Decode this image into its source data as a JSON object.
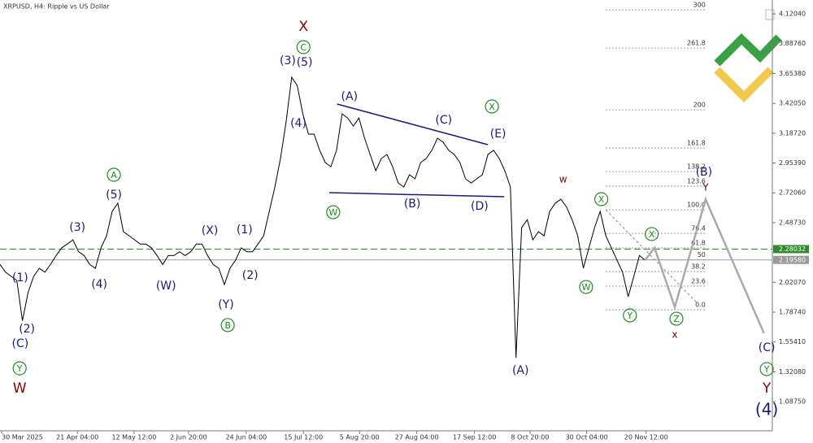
{
  "chart_data": {
    "type": "line",
    "title": "XRPUSD, H4:  Ripple vs US Dollar",
    "color": "#000000",
    "x": [
      0,
      1,
      2,
      3,
      4,
      5,
      6,
      7,
      8,
      9,
      10,
      11,
      12,
      13,
      14,
      15,
      16,
      17,
      18,
      19,
      20,
      21,
      22,
      23,
      24,
      25,
      26,
      27,
      28,
      29,
      30,
      31,
      32,
      33,
      34,
      35,
      36,
      37,
      38,
      39,
      40,
      41,
      42,
      43,
      44,
      45,
      46,
      47,
      48,
      49,
      50,
      51,
      52,
      53,
      54,
      55,
      56,
      57,
      58,
      59,
      60,
      61,
      62,
      63,
      64,
      65,
      66,
      67,
      68,
      69,
      70,
      71,
      72,
      73,
      74,
      75,
      76,
      77,
      78,
      79,
      80,
      81,
      82,
      83,
      84,
      85,
      86,
      87,
      88,
      89,
      90,
      91,
      92,
      93,
      94,
      95,
      96,
      97,
      98,
      99,
      100,
      101,
      102,
      103,
      104,
      105,
      106,
      107,
      108,
      109,
      110,
      111,
      112,
      113,
      114,
      115
    ],
    "values": [
      2.162,
      2.099,
      2.067,
      2.035,
      1.72,
      1.94,
      2.067,
      2.13,
      2.1,
      2.16,
      2.23,
      2.29,
      2.32,
      2.353,
      2.26,
      2.23,
      2.16,
      2.13,
      2.29,
      2.385,
      2.575,
      2.64,
      2.416,
      2.385,
      2.353,
      2.32,
      2.32,
      2.29,
      2.23,
      2.16,
      2.23,
      2.23,
      2.26,
      2.23,
      2.26,
      2.32,
      2.32,
      2.23,
      2.16,
      2.13,
      2.003,
      2.13,
      2.194,
      2.29,
      2.26,
      2.26,
      2.32,
      2.385,
      2.575,
      2.766,
      2.99,
      3.275,
      3.625,
      3.56,
      3.338,
      3.18,
      3.18,
      3.053,
      2.957,
      2.925,
      3.053,
      3.338,
      3.306,
      3.243,
      3.306,
      3.148,
      3.02,
      2.894,
      2.99,
      3.02,
      2.925,
      2.798,
      2.766,
      2.862,
      2.83,
      2.957,
      2.99,
      3.053,
      3.148,
      3.116,
      3.053,
      3.02,
      2.957,
      2.83,
      2.798,
      2.83,
      2.862,
      3.02,
      3.053,
      2.99,
      2.894,
      2.766,
      1.43,
      2.448,
      2.51,
      2.353,
      2.416,
      2.385,
      2.575,
      2.64,
      2.67,
      2.61,
      2.51,
      2.385,
      2.13,
      2.29,
      2.448,
      2.575,
      2.385,
      2.29,
      2.194,
      2.099,
      1.908,
      2.067,
      2.23,
      2.194
    ],
    "projection": {
      "color": "#aaaaaa",
      "x": [
        115,
        116.7,
        120.3,
        125.8,
        136.2
      ],
      "values": [
        2.194,
        2.29,
        1.826,
        2.67,
        1.622
      ]
    },
    "xlim": [
      0,
      137.7
    ],
    "ylim": [
      0.859,
      4.229
    ],
    "xticks": [
      {
        "value": 0.3,
        "label": "30 Mar 2025"
      },
      {
        "value": 13.8,
        "label": "21 Apr 04:00"
      },
      {
        "value": 23.9,
        "label": "12 May 12:00"
      },
      {
        "value": 33.6,
        "label": "2 Jun 20:00"
      },
      {
        "value": 43.9,
        "label": "24 Jun 04:00"
      },
      {
        "value": 54.1,
        "label": "15 Jul 12:00"
      },
      {
        "value": 64.1,
        "label": "5 Aug 20:00"
      },
      {
        "value": 74.3,
        "label": "27 Aug 04:00"
      },
      {
        "value": 84.6,
        "label": "17 Sep 12:00"
      },
      {
        "value": 94.5,
        "label": "8 Oct 20:00"
      },
      {
        "value": 104.6,
        "label": "30 Oct 04:00"
      },
      {
        "value": 115.2,
        "label": "20 Nov 12:00"
      }
    ],
    "yticks": [
      {
        "value": 4.1204,
        "label": "4.12040"
      },
      {
        "value": 3.8876,
        "label": "3.88760"
      },
      {
        "value": 3.6538,
        "label": "3.65380"
      },
      {
        "value": 3.4205,
        "label": "3.42050"
      },
      {
        "value": 3.1872,
        "label": "3.18720"
      },
      {
        "value": 2.9539,
        "label": "2.95390"
      },
      {
        "value": 2.7206,
        "label": "2.72060"
      },
      {
        "value": 2.4873,
        "label": "2.48730"
      },
      {
        "value": 2.0207,
        "label": "2.02070"
      },
      {
        "value": 1.7874,
        "label": "1.78740"
      },
      {
        "value": 1.5541,
        "label": "1.55410"
      },
      {
        "value": 1.3208,
        "label": "1.32080"
      },
      {
        "value": 1.0875,
        "label": "1.08750"
      }
    ],
    "price_lines": [
      {
        "value": 2.28032,
        "color": "#2e8b2e",
        "style": "dashed"
      },
      {
        "value": {
          "value": 2.1958,
          "label": "2.19580"
        },
        "color": "#9a9a9a",
        "style": "solid"
      }
    ],
    "fib": {
      "levels": [
        300,
        261.8,
        200,
        161.8,
        138.2,
        123.6,
        {
          "value": 100,
          "label": "100.0"
        },
        76.4,
        61.8,
        50,
        38.2,
        23.6,
        {
          "value": 0,
          "label": "0.0"
        }
      ],
      "zero": 1.806,
      "hundred": 2.588,
      "x": [
        108,
        125.8
      ],
      "color": "#999999"
    },
    "trendlines": [
      {
        "x": [
          60.1,
          87
        ],
        "y": [
          3.415,
          3.097
        ],
        "color": "#1c1c78",
        "style": "solid"
      },
      {
        "x": [
          58.7,
          89.9
        ],
        "y": [
          2.722,
          2.69
        ],
        "color": "#1c1c78",
        "style": "solid"
      },
      {
        "x": [
          108,
          124.6
        ],
        "y": [
          2.588,
          1.845
        ],
        "color": "#888888",
        "style": "dotted"
      }
    ],
    "annotations": [
      {
        "text": "(1)",
        "x": 3.6,
        "y": 2.054,
        "color": "#1c1c78"
      },
      {
        "text": "(2)",
        "x": 4.8,
        "y": 1.654,
        "color": "#1c1c78"
      },
      {
        "text": "(C)",
        "x": 3.6,
        "y": 1.539,
        "color": "#1c1c78"
      },
      {
        "text": "Y",
        "x": 3.5,
        "y": 1.348,
        "color": "#228b22",
        "circled": true
      },
      {
        "text": "W",
        "x": 3.5,
        "y": 1.189,
        "color": "#8b0000"
      },
      {
        "text": "(3)",
        "x": 13.8,
        "y": 2.448,
        "color": "#1c1c78"
      },
      {
        "text": "(4)",
        "x": 17.7,
        "y": 2.003,
        "color": "#1c1c78"
      },
      {
        "text": "A",
        "x": 20.3,
        "y": 2.862,
        "color": "#228b22",
        "circled": true
      },
      {
        "text": "(5)",
        "x": 20.3,
        "y": 2.703,
        "color": "#1c1c78"
      },
      {
        "text": "(W)",
        "x": 29.6,
        "y": 1.991,
        "color": "#1c1c78"
      },
      {
        "text": "(X)",
        "x": 37.4,
        "y": 2.423,
        "color": "#1c1c78"
      },
      {
        "text": "(Y)",
        "x": 40.3,
        "y": 1.845,
        "color": "#1c1c78"
      },
      {
        "text": "B",
        "x": 40.6,
        "y": 1.686,
        "color": "#228b22",
        "circled": true
      },
      {
        "text": "(1)",
        "x": 43.6,
        "y": 2.429,
        "color": "#1c1c78"
      },
      {
        "text": "(2)",
        "x": 44.6,
        "y": 2.073,
        "color": "#1c1c78"
      },
      {
        "text": "X",
        "x": 54.1,
        "y": 4.019,
        "color": "#8b0000"
      },
      {
        "text": "C",
        "x": 54.1,
        "y": 3.86,
        "color": "#228b22",
        "circled": true
      },
      {
        "text": "(3)",
        "x": 51.3,
        "y": 3.752,
        "color": "#1c1c78"
      },
      {
        "text": "(5)",
        "x": 54.3,
        "y": 3.739,
        "color": "#1c1c78"
      },
      {
        "text": "(4)",
        "x": 53.2,
        "y": 3.262,
        "color": "#1c1c78"
      },
      {
        "text": "(A)",
        "x": 62.3,
        "y": 3.472,
        "color": "#1c1c78"
      },
      {
        "text": "W",
        "x": 59.4,
        "y": 2.569,
        "color": "#228b22",
        "circled": true
      },
      {
        "text": "(B)",
        "x": 73.5,
        "y": 2.633,
        "color": "#1c1c78"
      },
      {
        "text": "(C)",
        "x": 79.1,
        "y": 3.288,
        "color": "#1c1c78"
      },
      {
        "text": "(D)",
        "x": 85.5,
        "y": 2.614,
        "color": "#1c1c78"
      },
      {
        "text": "X",
        "x": 87.7,
        "y": 3.396,
        "color": "#228b22",
        "circled": true
      },
      {
        "text": "(E)",
        "x": 88.8,
        "y": 3.18,
        "color": "#1c1c78"
      },
      {
        "text": "(A)",
        "x": 92.8,
        "y": 1.33,
        "color": "#1c1c78"
      },
      {
        "text": "w",
        "x": 100.4,
        "y": 2.824,
        "color": "#8b0000"
      },
      {
        "text": "X",
        "x": 107.2,
        "y": 2.671,
        "color": "#228b22",
        "circled": true
      },
      {
        "text": "W",
        "x": 104.5,
        "y": 1.984,
        "color": "#228b22",
        "circled": true
      },
      {
        "text": "X",
        "x": 116.2,
        "y": 2.398,
        "color": "#228b22",
        "circled": true
      },
      {
        "text": "Y",
        "x": 112.3,
        "y": 1.762,
        "color": "#228b22",
        "circled": true
      },
      {
        "text": "Z",
        "x": 120.6,
        "y": 1.736,
        "color": "#228b22",
        "circled": true
      },
      {
        "text": "x",
        "x": 120.3,
        "y": 1.609,
        "color": "#8b0000"
      },
      {
        "text": "(B)",
        "x": 125.5,
        "y": 2.881,
        "color": "#1c1c78"
      },
      {
        "text": "Y",
        "x": 125.8,
        "y": 2.76,
        "color": "#8b0000"
      },
      {
        "text": "(C)",
        "x": 136.7,
        "y": 1.507,
        "color": "#1c1c78"
      },
      {
        "text": "Y",
        "x": 136.7,
        "y": 1.342,
        "color": "#228b22",
        "circled": true
      },
      {
        "text": "Y",
        "x": 136.7,
        "y": 1.189,
        "color": "#8b0000"
      },
      {
        "text": "(4)",
        "x": 136.7,
        "y": 1.018,
        "color": "#1c1c78"
      }
    ]
  }
}
